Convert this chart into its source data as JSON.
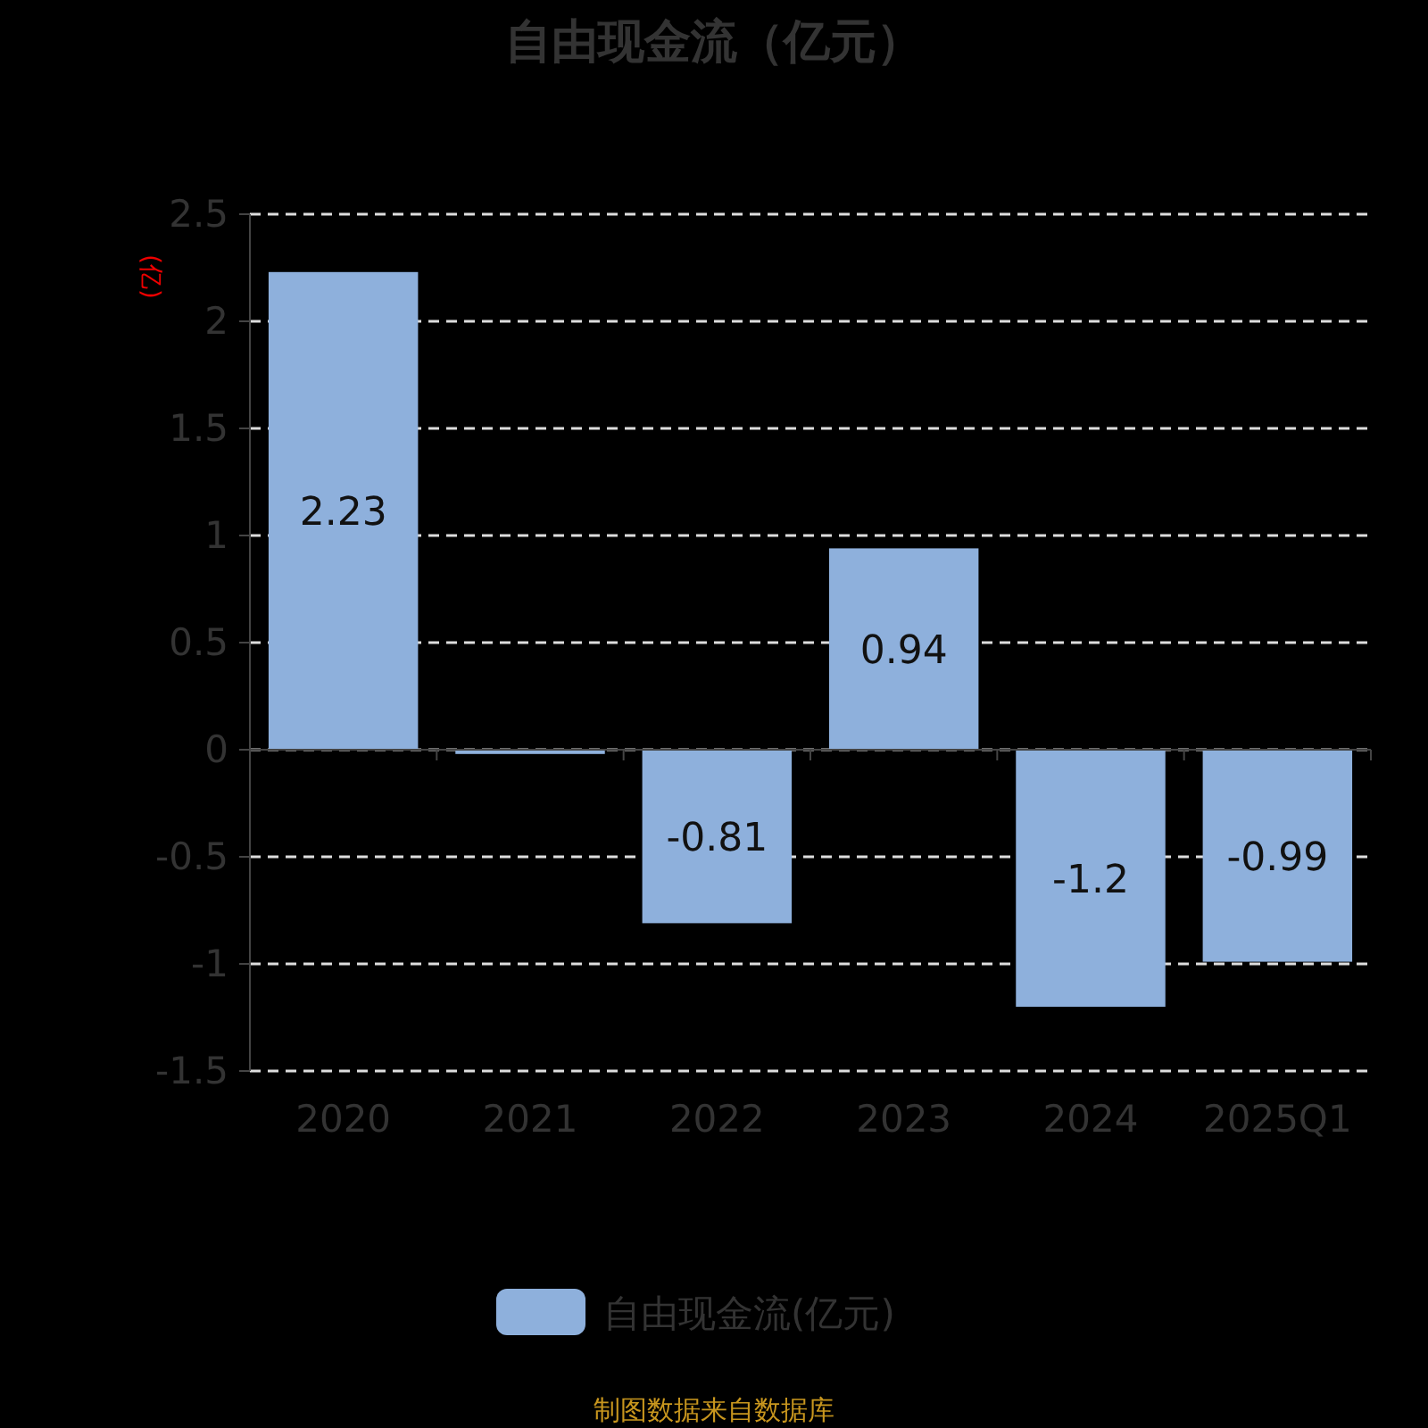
{
  "chart_data": {
    "type": "bar",
    "title": "自由现金流（亿元）",
    "ylabel": "(亿)",
    "categories": [
      "2020",
      "2021",
      "2022",
      "2023",
      "2024",
      "2025Q1"
    ],
    "series": [
      {
        "name": "自由现金流(亿元)",
        "color": "#8eb0dc",
        "values": [
          2.23,
          -0.02,
          -0.81,
          0.94,
          -1.2,
          -0.99
        ],
        "value_labels": [
          "2.23",
          null,
          "-0.81",
          "0.94",
          "-1.2",
          "-0.99"
        ]
      }
    ],
    "ylim": [
      -1.5,
      2.5
    ],
    "yticks": [
      -1.5,
      -1,
      -0.5,
      0,
      0.5,
      1,
      1.5,
      2,
      2.5
    ],
    "grid": "y",
    "legend": "bottom",
    "annotations": [
      "制图数据来自数据库"
    ]
  }
}
